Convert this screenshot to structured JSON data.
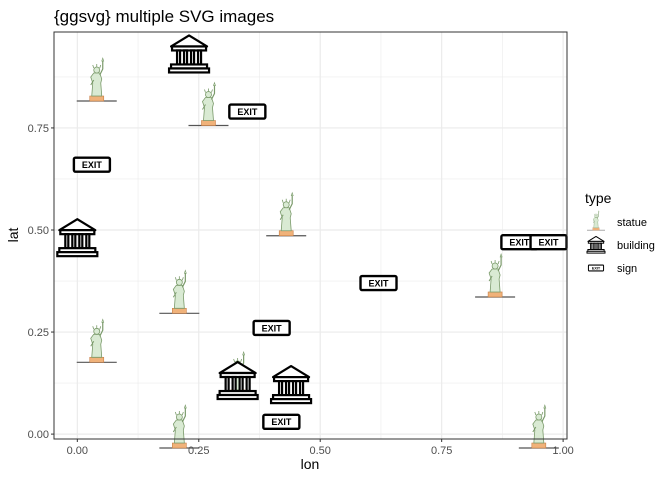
{
  "chart_data": {
    "type": "scatter",
    "title": "{ggsvg} multiple SVG images",
    "xlabel": "lon",
    "ylabel": "lat",
    "xlim": [
      -0.048,
      1.008
    ],
    "ylim": [
      -0.012,
      0.985
    ],
    "x_ticks": [
      0,
      0.25,
      0.5,
      0.75,
      1
    ],
    "x_tick_labels": [
      "0.00",
      "0.25",
      "0.50",
      "0.75",
      "1.00"
    ],
    "y_ticks": [
      0,
      0.25,
      0.5,
      0.75
    ],
    "y_tick_labels": [
      "0.00",
      "0.25",
      "0.50",
      "0.75"
    ],
    "grid": true,
    "legend_position": "right",
    "legend": {
      "title": "type",
      "entries": [
        {
          "type": "statue",
          "label": "statue"
        },
        {
          "type": "building",
          "label": "building"
        },
        {
          "type": "sign",
          "label": "sign"
        }
      ]
    },
    "sign_text": "EXIT",
    "points": [
      {
        "type": "statue",
        "x": 0.04,
        "y": 0.86
      },
      {
        "type": "statue",
        "x": 0.27,
        "y": 0.8
      },
      {
        "type": "statue",
        "x": 0.43,
        "y": 0.53
      },
      {
        "type": "statue",
        "x": 0.21,
        "y": 0.34
      },
      {
        "type": "statue",
        "x": 0.04,
        "y": 0.22
      },
      {
        "type": "statue",
        "x": 0.33,
        "y": 0.14
      },
      {
        "type": "statue",
        "x": 0.21,
        "y": 0.01
      },
      {
        "type": "statue",
        "x": 0.86,
        "y": 0.38
      },
      {
        "type": "statue",
        "x": 0.95,
        "y": 0.01
      },
      {
        "type": "building",
        "x": 0.23,
        "y": 0.93
      },
      {
        "type": "building",
        "x": 0.0,
        "y": 0.48
      },
      {
        "type": "building",
        "x": 0.33,
        "y": 0.13
      },
      {
        "type": "building",
        "x": 0.44,
        "y": 0.12
      },
      {
        "type": "sign",
        "x": 0.03,
        "y": 0.66
      },
      {
        "type": "sign",
        "x": 0.35,
        "y": 0.79
      },
      {
        "type": "sign",
        "x": 0.62,
        "y": 0.37
      },
      {
        "type": "sign",
        "x": 0.4,
        "y": 0.26
      },
      {
        "type": "sign",
        "x": 0.42,
        "y": 0.03
      },
      {
        "type": "sign",
        "x": 0.91,
        "y": 0.47
      },
      {
        "type": "sign",
        "x": 0.97,
        "y": 0.47
      }
    ]
  },
  "colors": {
    "grid": "#ebebeb",
    "panel_border": "#333333",
    "statue_fill": "#d9ead3",
    "statue_stroke": "#7a9a6a",
    "statue_base": "#f0b27a",
    "statue_ground": "#555555",
    "building_stroke": "#000000",
    "building_fill": "#ffffff",
    "sign_fill": "#ffffff",
    "sign_stroke": "#000000"
  }
}
